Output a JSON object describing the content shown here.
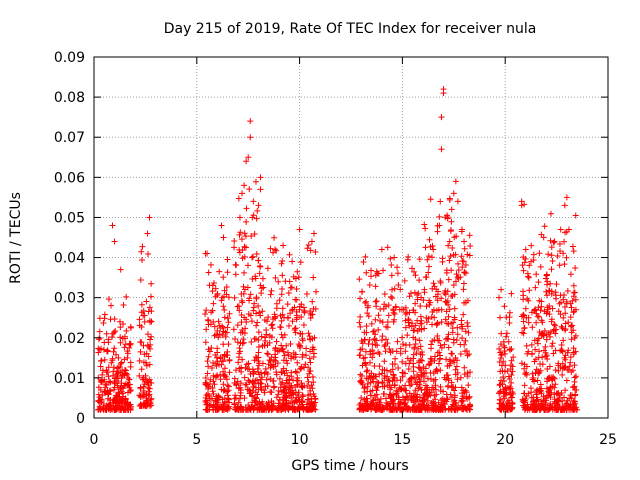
{
  "chart_data": {
    "type": "scatter",
    "title": "Day 215 of 2019, Rate Of TEC Index for receiver nula",
    "xlabel": "GPS time / hours",
    "ylabel": "ROTI / TECUs",
    "xlim": [
      0,
      25
    ],
    "ylim": [
      0,
      0.09
    ],
    "x_ticks": [
      "0",
      "5",
      "10",
      "15",
      "20",
      "25"
    ],
    "y_ticks": [
      "0",
      "0.01",
      "0.02",
      "0.03",
      "0.04",
      "0.05",
      "0.06",
      "0.07",
      "0.08",
      "0.09"
    ],
    "grid": true,
    "legend": "none",
    "marker": "+",
    "color": "#ff0000",
    "data_gaps_hours": [
      [
        2.9,
        5.3
      ],
      [
        10.9,
        12.8
      ],
      [
        18.4,
        19.6
      ],
      [
        19.9,
        20.7
      ],
      [
        23.6,
        25
      ]
    ],
    "clusters": [
      {
        "x_range": [
          0.2,
          1.8
        ],
        "y_range": [
          0.002,
          0.032
        ]
      },
      {
        "x_range": [
          2.2,
          2.8
        ],
        "y_range": [
          0.003,
          0.048
        ]
      },
      {
        "x_range": [
          5.4,
          6.6
        ],
        "y_range": [
          0.002,
          0.045
        ]
      },
      {
        "x_range": [
          6.8,
          8.0
        ],
        "y_range": [
          0.002,
          0.065
        ]
      },
      {
        "x_range": [
          8.0,
          10.8
        ],
        "y_range": [
          0.002,
          0.046
        ]
      },
      {
        "x_range": [
          12.9,
          16.0
        ],
        "y_range": [
          0.002,
          0.045
        ]
      },
      {
        "x_range": [
          16.0,
          18.3
        ],
        "y_range": [
          0.002,
          0.059
        ]
      },
      {
        "x_range": [
          19.7,
          20.4
        ],
        "y_range": [
          0.002,
          0.032
        ]
      },
      {
        "x_range": [
          20.8,
          23.5
        ],
        "y_range": [
          0.002,
          0.054
        ]
      }
    ],
    "points": [
      [
        0.9,
        0.048
      ],
      [
        1.0,
        0.044
      ],
      [
        1.3,
        0.037
      ],
      [
        2.7,
        0.05
      ],
      [
        2.6,
        0.046
      ],
      [
        5.5,
        0.041
      ],
      [
        6.2,
        0.048
      ],
      [
        6.3,
        0.045
      ],
      [
        7.1,
        0.05
      ],
      [
        7.2,
        0.056
      ],
      [
        7.3,
        0.058
      ],
      [
        7.4,
        0.064
      ],
      [
        7.5,
        0.065
      ],
      [
        7.6,
        0.07
      ],
      [
        7.6,
        0.074
      ],
      [
        7.7,
        0.05
      ],
      [
        8.1,
        0.06
      ],
      [
        8.1,
        0.057
      ],
      [
        8.0,
        0.053
      ],
      [
        9.2,
        0.043
      ],
      [
        10.0,
        0.047
      ],
      [
        10.7,
        0.046
      ],
      [
        10.6,
        0.044
      ],
      [
        14.0,
        0.042
      ],
      [
        14.6,
        0.04
      ],
      [
        16.5,
        0.042
      ],
      [
        16.8,
        0.048
      ],
      [
        16.9,
        0.067
      ],
      [
        16.9,
        0.075
      ],
      [
        17.0,
        0.081
      ],
      [
        17.0,
        0.082
      ],
      [
        17.3,
        0.044
      ],
      [
        17.4,
        0.052
      ],
      [
        17.5,
        0.056
      ],
      [
        17.6,
        0.059
      ],
      [
        17.7,
        0.054
      ],
      [
        17.9,
        0.047
      ],
      [
        18.0,
        0.044
      ],
      [
        20.8,
        0.053
      ],
      [
        20.8,
        0.054
      ],
      [
        21.0,
        0.042
      ],
      [
        22.4,
        0.044
      ],
      [
        22.7,
        0.047
      ],
      [
        22.9,
        0.053
      ],
      [
        23.0,
        0.055
      ],
      [
        23.1,
        0.047
      ],
      [
        20.3,
        0.031
      ],
      [
        19.8,
        0.032
      ],
      [
        19.7,
        0.03
      ]
    ]
  }
}
